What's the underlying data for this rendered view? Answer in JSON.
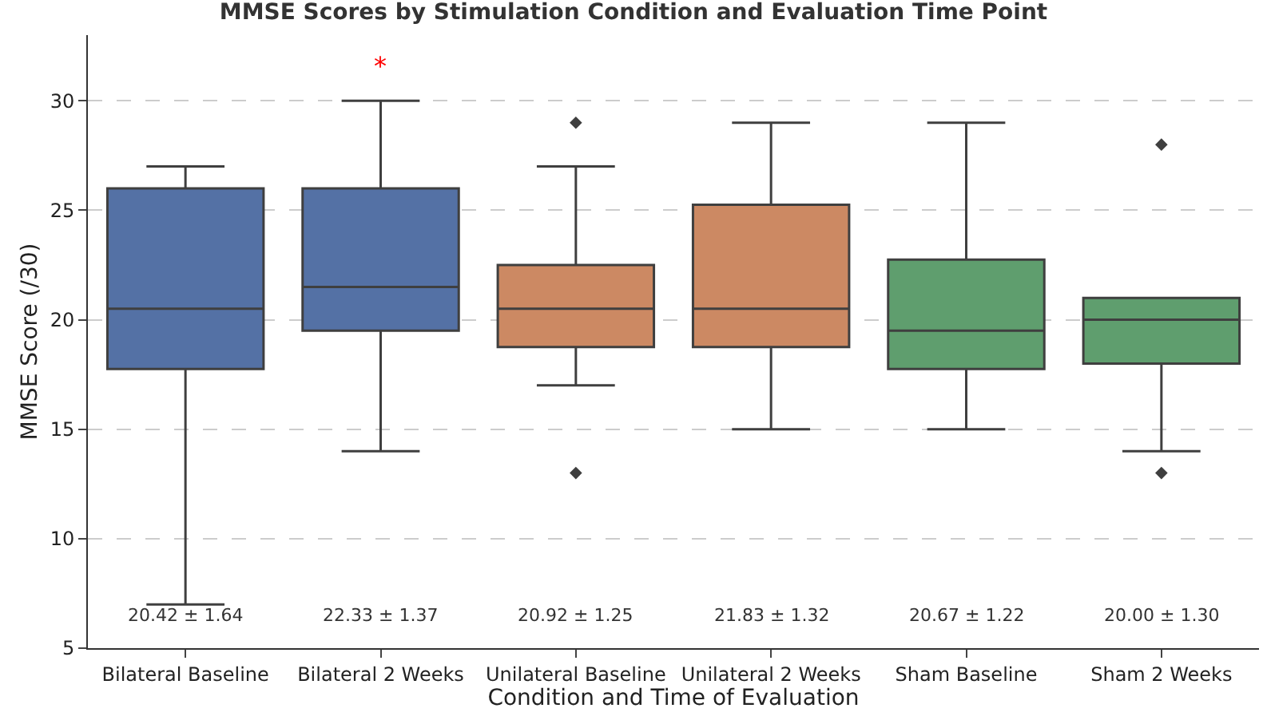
{
  "chart_data": {
    "type": "box",
    "title": "MMSE Scores by Stimulation Condition and Evaluation Time Point",
    "xlabel": "Condition and Time of Evaluation",
    "ylabel": "MMSE Score (/30)",
    "categories": [
      "Bilateral Baseline",
      "Bilateral 2 Weeks",
      "Unilateral Baseline",
      "Unilateral 2 Weeks",
      "Sham Baseline",
      "Sham 2 Weeks"
    ],
    "colors": [
      "#5471a5",
      "#5471a5",
      "#cc8963",
      "#cc8963",
      "#5f9e6e",
      "#5f9e6e"
    ],
    "boxes": [
      {
        "low": 7,
        "q1": 17.75,
        "median": 20.5,
        "q3": 26,
        "high": 27
      },
      {
        "low": 14,
        "q1": 19.5,
        "median": 21.5,
        "q3": 26,
        "high": 30
      },
      {
        "low": 17,
        "q1": 18.75,
        "median": 20.5,
        "q3": 22.5,
        "high": 27,
        "outliers": [
          29,
          13
        ]
      },
      {
        "low": 15,
        "q1": 18.75,
        "median": 20.5,
        "q3": 25.25,
        "high": 29
      },
      {
        "low": 15,
        "q1": 17.75,
        "median": 19.5,
        "q3": 22.75,
        "high": 29
      },
      {
        "low": 14,
        "q1": 18,
        "median": 20,
        "q3": 21,
        "high": 21,
        "outliers": [
          28,
          13
        ]
      }
    ],
    "ylim": [
      5,
      33
    ],
    "yticks": [
      5,
      10,
      15,
      20,
      25,
      30
    ],
    "grid": "y",
    "marker": "diamond",
    "annotations": [
      "*",
      "20.42 ± 1.64",
      "22.33 ± 1.37",
      "20.92 ± 1.25",
      "21.83 ± 1.32",
      "20.67 ± 1.22",
      "20.00 ± 1.30"
    ]
  }
}
